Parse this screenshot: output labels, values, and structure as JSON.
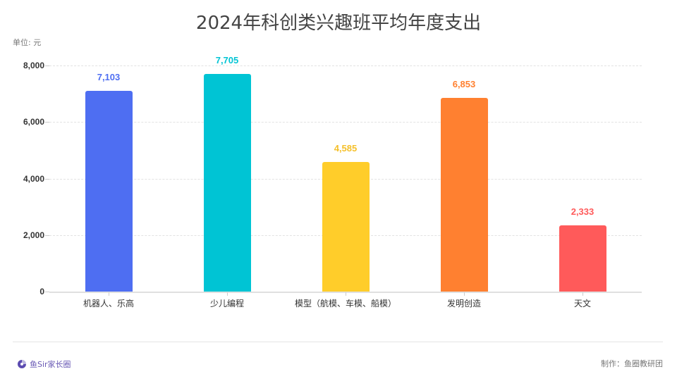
{
  "title": "2024年科创类兴趣班平均年度支出",
  "unit_label": "单位: 元",
  "footer": {
    "brand": "鱼Sir家长圈",
    "credit": "制作：鱼圈教研团"
  },
  "colors": {
    "robot": "#4e6ef2",
    "coding": "#00c4d4",
    "model": "#ffcd2a",
    "invention": "#ff8030",
    "astronomy": "#ff5a5a"
  },
  "yticks": [
    "0",
    "2,000",
    "4,000",
    "6,000",
    "8,000"
  ],
  "bars": [
    {
      "label": "机器人、乐高",
      "value_text": "7,103",
      "value": 7103,
      "color": "#4e6ef2"
    },
    {
      "label": "少儿编程",
      "value_text": "7,705",
      "value": 7705,
      "color": "#00c4d4"
    },
    {
      "label": "模型（航模、车模、船模）",
      "value_text": "4,585",
      "value": 4585,
      "color": "#ffcd2a"
    },
    {
      "label": "发明创造",
      "value_text": "6,853",
      "value": 6853,
      "color": "#ff8030"
    },
    {
      "label": "天文",
      "value_text": "2,333",
      "value": 2333,
      "color": "#ff5a5a"
    }
  ],
  "chart_data": {
    "type": "bar",
    "title": "2024年科创类兴趣班平均年度支出",
    "xlabel": "",
    "ylabel": "单位: 元",
    "categories": [
      "机器人、乐高",
      "少儿编程",
      "模型（航模、车模、船模）",
      "发明创造",
      "天文"
    ],
    "values": [
      7103,
      7705,
      4585,
      6853,
      2333
    ],
    "ylim": [
      0,
      8000
    ],
    "yticks": [
      0,
      2000,
      4000,
      6000,
      8000
    ],
    "grid": true,
    "legend": null,
    "data_labels": true
  }
}
